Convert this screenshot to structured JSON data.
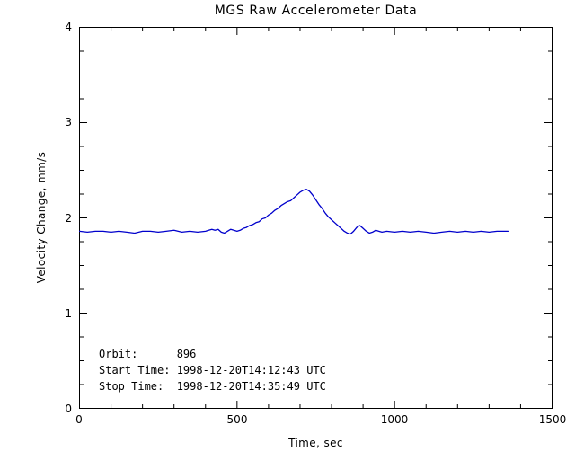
{
  "chart_data": {
    "type": "line",
    "title": "MGS Raw Accelerometer Data",
    "xlabel": "Time, sec",
    "ylabel": "Velocity Change, mm/s",
    "xlim": [
      0,
      1500
    ],
    "ylim": [
      0,
      4
    ],
    "x_ticks": [
      "0",
      "500",
      "1000",
      "1500"
    ],
    "y_ticks": [
      "0",
      "1",
      "2",
      "3",
      "4"
    ],
    "x_minor_step": 100,
    "y_minor_step": 0.25,
    "grid": false,
    "legend": "none",
    "line_color": "#0000cc",
    "axis_color": "#000000",
    "annotations": [
      "Orbit:      896",
      "Start Time: 1998-12-20T14:12:43 UTC",
      "Stop Time:  1998-12-20T14:35:49 UTC"
    ],
    "series": [
      {
        "name": "Velocity Change",
        "x": [
          0,
          25,
          50,
          75,
          100,
          125,
          150,
          175,
          200,
          225,
          250,
          275,
          300,
          325,
          350,
          375,
          400,
          410,
          420,
          430,
          440,
          450,
          460,
          470,
          480,
          490,
          500,
          510,
          520,
          530,
          540,
          550,
          560,
          570,
          580,
          590,
          600,
          610,
          620,
          630,
          640,
          650,
          660,
          670,
          680,
          690,
          700,
          710,
          720,
          730,
          740,
          750,
          760,
          770,
          780,
          790,
          800,
          810,
          820,
          830,
          840,
          850,
          860,
          870,
          880,
          890,
          900,
          910,
          920,
          930,
          940,
          950,
          960,
          975,
          1000,
          1025,
          1050,
          1075,
          1100,
          1125,
          1150,
          1175,
          1200,
          1225,
          1250,
          1275,
          1300,
          1325,
          1350,
          1360
        ],
        "y": [
          1.86,
          1.85,
          1.86,
          1.86,
          1.85,
          1.86,
          1.85,
          1.84,
          1.86,
          1.86,
          1.85,
          1.86,
          1.87,
          1.85,
          1.86,
          1.85,
          1.86,
          1.87,
          1.88,
          1.87,
          1.88,
          1.85,
          1.84,
          1.86,
          1.88,
          1.87,
          1.86,
          1.87,
          1.89,
          1.9,
          1.92,
          1.93,
          1.95,
          1.96,
          1.99,
          2.0,
          2.03,
          2.05,
          2.08,
          2.1,
          2.13,
          2.15,
          2.17,
          2.18,
          2.21,
          2.24,
          2.27,
          2.29,
          2.3,
          2.28,
          2.24,
          2.19,
          2.14,
          2.1,
          2.05,
          2.01,
          1.98,
          1.95,
          1.92,
          1.89,
          1.86,
          1.84,
          1.83,
          1.86,
          1.9,
          1.92,
          1.89,
          1.86,
          1.84,
          1.85,
          1.87,
          1.86,
          1.85,
          1.86,
          1.85,
          1.86,
          1.85,
          1.86,
          1.85,
          1.84,
          1.85,
          1.86,
          1.85,
          1.86,
          1.85,
          1.86,
          1.85,
          1.86,
          1.86,
          1.86
        ]
      }
    ]
  }
}
